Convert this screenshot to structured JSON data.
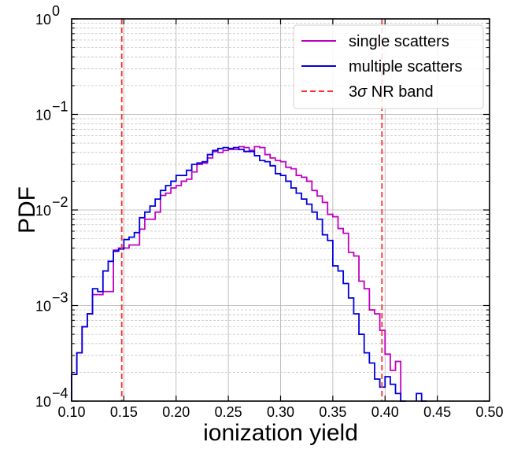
{
  "chart_data": {
    "type": "line",
    "xlabel": "ionization yield",
    "ylabel": "PDF",
    "xlim": [
      0.1,
      0.5
    ],
    "ylim": [
      0.0001,
      1
    ],
    "yscale": "log",
    "grid": true,
    "legend_position": "top-right",
    "x_ticks": [
      "0.10",
      "0.15",
      "0.20",
      "0.25",
      "0.30",
      "0.35",
      "0.40",
      "0.45",
      "0.50"
    ],
    "y_ticks": [
      {
        "base": "10",
        "exp": "−4"
      },
      {
        "base": "10",
        "exp": "−3"
      },
      {
        "base": "10",
        "exp": "−2"
      },
      {
        "base": "10",
        "exp": "−1"
      },
      {
        "base": "10",
        "exp": "0"
      }
    ],
    "bin_width": 0.005,
    "series": [
      {
        "name": "single scatters",
        "color": "#c000c0",
        "style": "step",
        "bins": [
          [
            0.1,
            0.00019
          ],
          [
            0.105,
            0.00032
          ],
          [
            0.11,
            0.0006
          ],
          [
            0.115,
            0.00082
          ],
          [
            0.12,
            0.0013
          ],
          [
            0.125,
            0.0013
          ],
          [
            0.13,
            0.0014
          ],
          [
            0.135,
            0.0014
          ],
          [
            0.14,
            0.0038
          ],
          [
            0.145,
            0.004
          ],
          [
            0.15,
            0.004
          ],
          [
            0.155,
            0.0043
          ],
          [
            0.16,
            0.0043
          ],
          [
            0.165,
            0.0063
          ],
          [
            0.17,
            0.008
          ],
          [
            0.175,
            0.008
          ],
          [
            0.18,
            0.0095
          ],
          [
            0.185,
            0.0142
          ],
          [
            0.19,
            0.015
          ],
          [
            0.195,
            0.017
          ],
          [
            0.2,
            0.018
          ],
          [
            0.205,
            0.02
          ],
          [
            0.21,
            0.021
          ],
          [
            0.215,
            0.025
          ],
          [
            0.22,
            0.03
          ],
          [
            0.225,
            0.031
          ],
          [
            0.23,
            0.035
          ],
          [
            0.235,
            0.041
          ],
          [
            0.24,
            0.04
          ],
          [
            0.245,
            0.042
          ],
          [
            0.25,
            0.043
          ],
          [
            0.255,
            0.043
          ],
          [
            0.26,
            0.046
          ],
          [
            0.265,
            0.045
          ],
          [
            0.27,
            0.042
          ],
          [
            0.275,
            0.046
          ],
          [
            0.28,
            0.045
          ],
          [
            0.285,
            0.038
          ],
          [
            0.29,
            0.035
          ],
          [
            0.295,
            0.033
          ],
          [
            0.3,
            0.032
          ],
          [
            0.305,
            0.028
          ],
          [
            0.31,
            0.027
          ],
          [
            0.315,
            0.023
          ],
          [
            0.32,
            0.022
          ],
          [
            0.325,
            0.02
          ],
          [
            0.33,
            0.016
          ],
          [
            0.335,
            0.014
          ],
          [
            0.34,
            0.012
          ],
          [
            0.345,
            0.009
          ],
          [
            0.35,
            0.0085
          ],
          [
            0.355,
            0.0064
          ],
          [
            0.36,
            0.0057
          ],
          [
            0.365,
            0.0036
          ],
          [
            0.37,
            0.0033
          ],
          [
            0.375,
            0.0018
          ],
          [
            0.38,
            0.0015
          ],
          [
            0.385,
            0.0009
          ],
          [
            0.39,
            0.00082
          ],
          [
            0.395,
            0.00055
          ],
          [
            0.4,
            0.00031
          ],
          [
            0.405,
            0.00021
          ],
          [
            0.41,
            0.00026
          ]
        ]
      },
      {
        "name": "multiple scatters",
        "color": "#0000dd",
        "style": "step",
        "bins": [
          [
            0.1,
            0.00019
          ],
          [
            0.105,
            0.00032
          ],
          [
            0.11,
            0.0006
          ],
          [
            0.115,
            0.00082
          ],
          [
            0.12,
            0.0015
          ],
          [
            0.125,
            0.0014
          ],
          [
            0.13,
            0.0023
          ],
          [
            0.135,
            0.0029
          ],
          [
            0.14,
            0.0037
          ],
          [
            0.145,
            0.0039
          ],
          [
            0.15,
            0.0049
          ],
          [
            0.155,
            0.0052
          ],
          [
            0.16,
            0.0058
          ],
          [
            0.165,
            0.0083
          ],
          [
            0.17,
            0.0095
          ],
          [
            0.175,
            0.011
          ],
          [
            0.18,
            0.013
          ],
          [
            0.185,
            0.016
          ],
          [
            0.19,
            0.018
          ],
          [
            0.195,
            0.02
          ],
          [
            0.2,
            0.023
          ],
          [
            0.205,
            0.023
          ],
          [
            0.21,
            0.026
          ],
          [
            0.215,
            0.03
          ],
          [
            0.22,
            0.031
          ],
          [
            0.225,
            0.032
          ],
          [
            0.23,
            0.038
          ],
          [
            0.235,
            0.042
          ],
          [
            0.24,
            0.044
          ],
          [
            0.245,
            0.045
          ],
          [
            0.25,
            0.044
          ],
          [
            0.255,
            0.045
          ],
          [
            0.26,
            0.043
          ],
          [
            0.265,
            0.041
          ],
          [
            0.27,
            0.041
          ],
          [
            0.275,
            0.037
          ],
          [
            0.28,
            0.033
          ],
          [
            0.285,
            0.032
          ],
          [
            0.29,
            0.029
          ],
          [
            0.295,
            0.024
          ],
          [
            0.3,
            0.023
          ],
          [
            0.305,
            0.02
          ],
          [
            0.31,
            0.017
          ],
          [
            0.315,
            0.015
          ],
          [
            0.32,
            0.013
          ],
          [
            0.325,
            0.0115
          ],
          [
            0.33,
            0.0095
          ],
          [
            0.335,
            0.008
          ],
          [
            0.34,
            0.0055
          ],
          [
            0.345,
            0.0048
          ],
          [
            0.35,
            0.0026
          ],
          [
            0.355,
            0.0023
          ],
          [
            0.36,
            0.0017
          ],
          [
            0.365,
            0.0012
          ],
          [
            0.37,
            0.00082
          ],
          [
            0.375,
            0.0005
          ],
          [
            0.38,
            0.00032
          ],
          [
            0.385,
            0.00025
          ],
          [
            0.39,
            0.00017
          ],
          [
            0.395,
            0.00014
          ],
          [
            0.4,
            0.00018
          ],
          [
            0.405,
            0.00015
          ],
          [
            0.41,
            0.00012
          ],
          [
            0.415,
            5e-05
          ],
          [
            0.43,
            0.00012
          ],
          [
            0.435,
            5e-05
          ]
        ]
      }
    ],
    "reference_lines": [
      {
        "name": "3σ NR band",
        "legend_prefix": "3",
        "legend_symbol": "σ",
        "legend_suffix": " NR band",
        "color": "#ff3030",
        "style": "dashed",
        "x": [
          0.148,
          0.397
        ]
      }
    ]
  }
}
